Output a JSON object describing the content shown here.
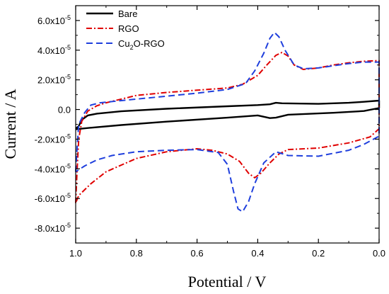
{
  "chart_data": {
    "type": "line",
    "title": "",
    "xlabel": "Potential / V",
    "ylabel": "Current / A",
    "xlim": [
      1.0,
      0.0
    ],
    "ylim": [
      -9e-05,
      7e-05
    ],
    "x_ticks": [
      1.0,
      0.8,
      0.6,
      0.4,
      0.2,
      0.0
    ],
    "x_tick_labels": [
      "1.0",
      "0.8",
      "0.6",
      "0.4",
      "0.2",
      "0.0"
    ],
    "y_ticks": [
      -8e-05,
      -6e-05,
      -4e-05,
      -2e-05,
      0,
      2e-05,
      4e-05,
      6e-05
    ],
    "y_tick_labels": [
      {
        "mant": "-8.0x10",
        "exp": "-5"
      },
      {
        "mant": "-6.0x10",
        "exp": "-5"
      },
      {
        "mant": "-4.0x10",
        "exp": "-5"
      },
      {
        "mant": "-2.0x10",
        "exp": "-5"
      },
      {
        "mant": "0.0",
        "exp": ""
      },
      {
        "mant": "2.0x10",
        "exp": "-5"
      },
      {
        "mant": "4.0x10",
        "exp": "-5"
      },
      {
        "mant": "6.0x10",
        "exp": "-5"
      }
    ],
    "grid": false,
    "legend_position": "top-left",
    "series": [
      {
        "name": "Bare",
        "legend_parts": [
          {
            "t": "Bare",
            "sub": false
          }
        ],
        "color": "#000000",
        "dash": "",
        "width": 2.4,
        "points": [
          [
            1.0,
            -1.3e-05
          ],
          [
            0.99,
            -1.12e-05
          ],
          [
            0.98,
            -7e-06
          ],
          [
            0.96,
            -4e-06
          ],
          [
            0.93,
            -2.8e-06
          ],
          [
            0.85,
            -1.2e-06
          ],
          [
            0.7,
            5e-07
          ],
          [
            0.5,
            2.2e-06
          ],
          [
            0.4,
            3e-06
          ],
          [
            0.36,
            3.5e-06
          ],
          [
            0.34,
            4.5e-06
          ],
          [
            0.32,
            4.2e-06
          ],
          [
            0.2,
            3.8e-06
          ],
          [
            0.1,
            4.5e-06
          ],
          [
            0.05,
            5.2e-06
          ],
          [
            0.0,
            6e-06
          ],
          [
            0.0,
            1e-06
          ],
          [
            0.05,
            -1e-06
          ],
          [
            0.15,
            -2.2e-06
          ],
          [
            0.3,
            -3.5e-06
          ],
          [
            0.34,
            -5.5e-06
          ],
          [
            0.36,
            -5.8e-06
          ],
          [
            0.4,
            -4e-06
          ],
          [
            0.5,
            -5.5e-06
          ],
          [
            0.7,
            -8.2e-06
          ],
          [
            0.85,
            -1.05e-05
          ],
          [
            0.95,
            -1.23e-05
          ],
          [
            1.0,
            -1.33e-05
          ]
        ]
      },
      {
        "name": "RGO",
        "legend_parts": [
          {
            "t": "RGO",
            "sub": false
          }
        ],
        "color": "#e00000",
        "dash": "8,3,2,3",
        "width": 2,
        "points": [
          [
            1.0,
            -6.3e-05
          ],
          [
            0.995,
            -4e-05
          ],
          [
            0.99,
            -2e-05
          ],
          [
            0.98,
            -8e-06
          ],
          [
            0.96,
            -1e-06
          ],
          [
            0.93,
            2.5e-06
          ],
          [
            0.9,
            4.5e-06
          ],
          [
            0.8,
            9.5e-06
          ],
          [
            0.7,
            1.15e-05
          ],
          [
            0.6,
            1.3e-05
          ],
          [
            0.5,
            1.45e-05
          ],
          [
            0.45,
            1.7e-05
          ],
          [
            0.4,
            2.3e-05
          ],
          [
            0.37,
            3e-05
          ],
          [
            0.34,
            3.65e-05
          ],
          [
            0.32,
            3.85e-05
          ],
          [
            0.3,
            3.6e-05
          ],
          [
            0.28,
            3e-05
          ],
          [
            0.25,
            2.7e-05
          ],
          [
            0.2,
            2.8e-05
          ],
          [
            0.15,
            3e-05
          ],
          [
            0.1,
            3.15e-05
          ],
          [
            0.05,
            3.25e-05
          ],
          [
            0.0,
            3.3e-05
          ],
          [
            0.0,
            3.1e-05
          ],
          [
            0.0,
            -1.3e-05
          ],
          [
            0.03,
            -1.85e-05
          ],
          [
            0.1,
            -2.25e-05
          ],
          [
            0.2,
            -2.6e-05
          ],
          [
            0.3,
            -2.7e-05
          ],
          [
            0.33,
            -3e-05
          ],
          [
            0.36,
            -3.6e-05
          ],
          [
            0.39,
            -4.3e-05
          ],
          [
            0.41,
            -4.6e-05
          ],
          [
            0.43,
            -4.3e-05
          ],
          [
            0.46,
            -3.5e-05
          ],
          [
            0.5,
            -3e-05
          ],
          [
            0.55,
            -2.75e-05
          ],
          [
            0.6,
            -2.65e-05
          ],
          [
            0.7,
            -2.85e-05
          ],
          [
            0.8,
            -3.3e-05
          ],
          [
            0.9,
            -4.2e-05
          ],
          [
            0.95,
            -5e-05
          ],
          [
            0.99,
            -5.8e-05
          ],
          [
            1.0,
            -6.3e-05
          ]
        ]
      },
      {
        "name": "Cu2O-RGO",
        "legend_parts": [
          {
            "t": "Cu",
            "sub": false
          },
          {
            "t": "2",
            "sub": true
          },
          {
            "t": "O-RGO",
            "sub": false
          }
        ],
        "color": "#1f3fdd",
        "dash": "9,5",
        "width": 2,
        "points": [
          [
            1.0,
            -4.2e-05
          ],
          [
            0.995,
            -2.5e-05
          ],
          [
            0.99,
            -1e-05
          ],
          [
            0.97,
            -2e-06
          ],
          [
            0.95,
            3e-06
          ],
          [
            0.92,
            4.5e-06
          ],
          [
            0.85,
            6e-06
          ],
          [
            0.7,
            9e-06
          ],
          [
            0.6,
            1.1e-05
          ],
          [
            0.5,
            1.35e-05
          ],
          [
            0.44,
            1.75e-05
          ],
          [
            0.41,
            2.6e-05
          ],
          [
            0.38,
            3.8e-05
          ],
          [
            0.36,
            4.8e-05
          ],
          [
            0.345,
            5.2e-05
          ],
          [
            0.33,
            4.9e-05
          ],
          [
            0.31,
            4e-05
          ],
          [
            0.28,
            3e-05
          ],
          [
            0.25,
            2.75e-05
          ],
          [
            0.2,
            2.8e-05
          ],
          [
            0.15,
            2.95e-05
          ],
          [
            0.1,
            3.1e-05
          ],
          [
            0.05,
            3.2e-05
          ],
          [
            0.0,
            3.2e-05
          ],
          [
            0.0,
            -1.8e-05
          ],
          [
            0.05,
            -2.35e-05
          ],
          [
            0.1,
            -2.75e-05
          ],
          [
            0.2,
            -3.15e-05
          ],
          [
            0.3,
            -3.1e-05
          ],
          [
            0.34,
            -2.85e-05
          ],
          [
            0.38,
            -3.6e-05
          ],
          [
            0.41,
            -5e-05
          ],
          [
            0.43,
            -6.2e-05
          ],
          [
            0.45,
            -6.9e-05
          ],
          [
            0.465,
            -6.7e-05
          ],
          [
            0.48,
            -5.5e-05
          ],
          [
            0.5,
            -3.7e-05
          ],
          [
            0.53,
            -2.9e-05
          ],
          [
            0.6,
            -2.7e-05
          ],
          [
            0.7,
            -2.75e-05
          ],
          [
            0.8,
            -2.85e-05
          ],
          [
            0.88,
            -3.1e-05
          ],
          [
            0.93,
            -3.4e-05
          ],
          [
            0.97,
            -3.8e-05
          ],
          [
            1.0,
            -4.2e-05
          ]
        ]
      }
    ]
  }
}
